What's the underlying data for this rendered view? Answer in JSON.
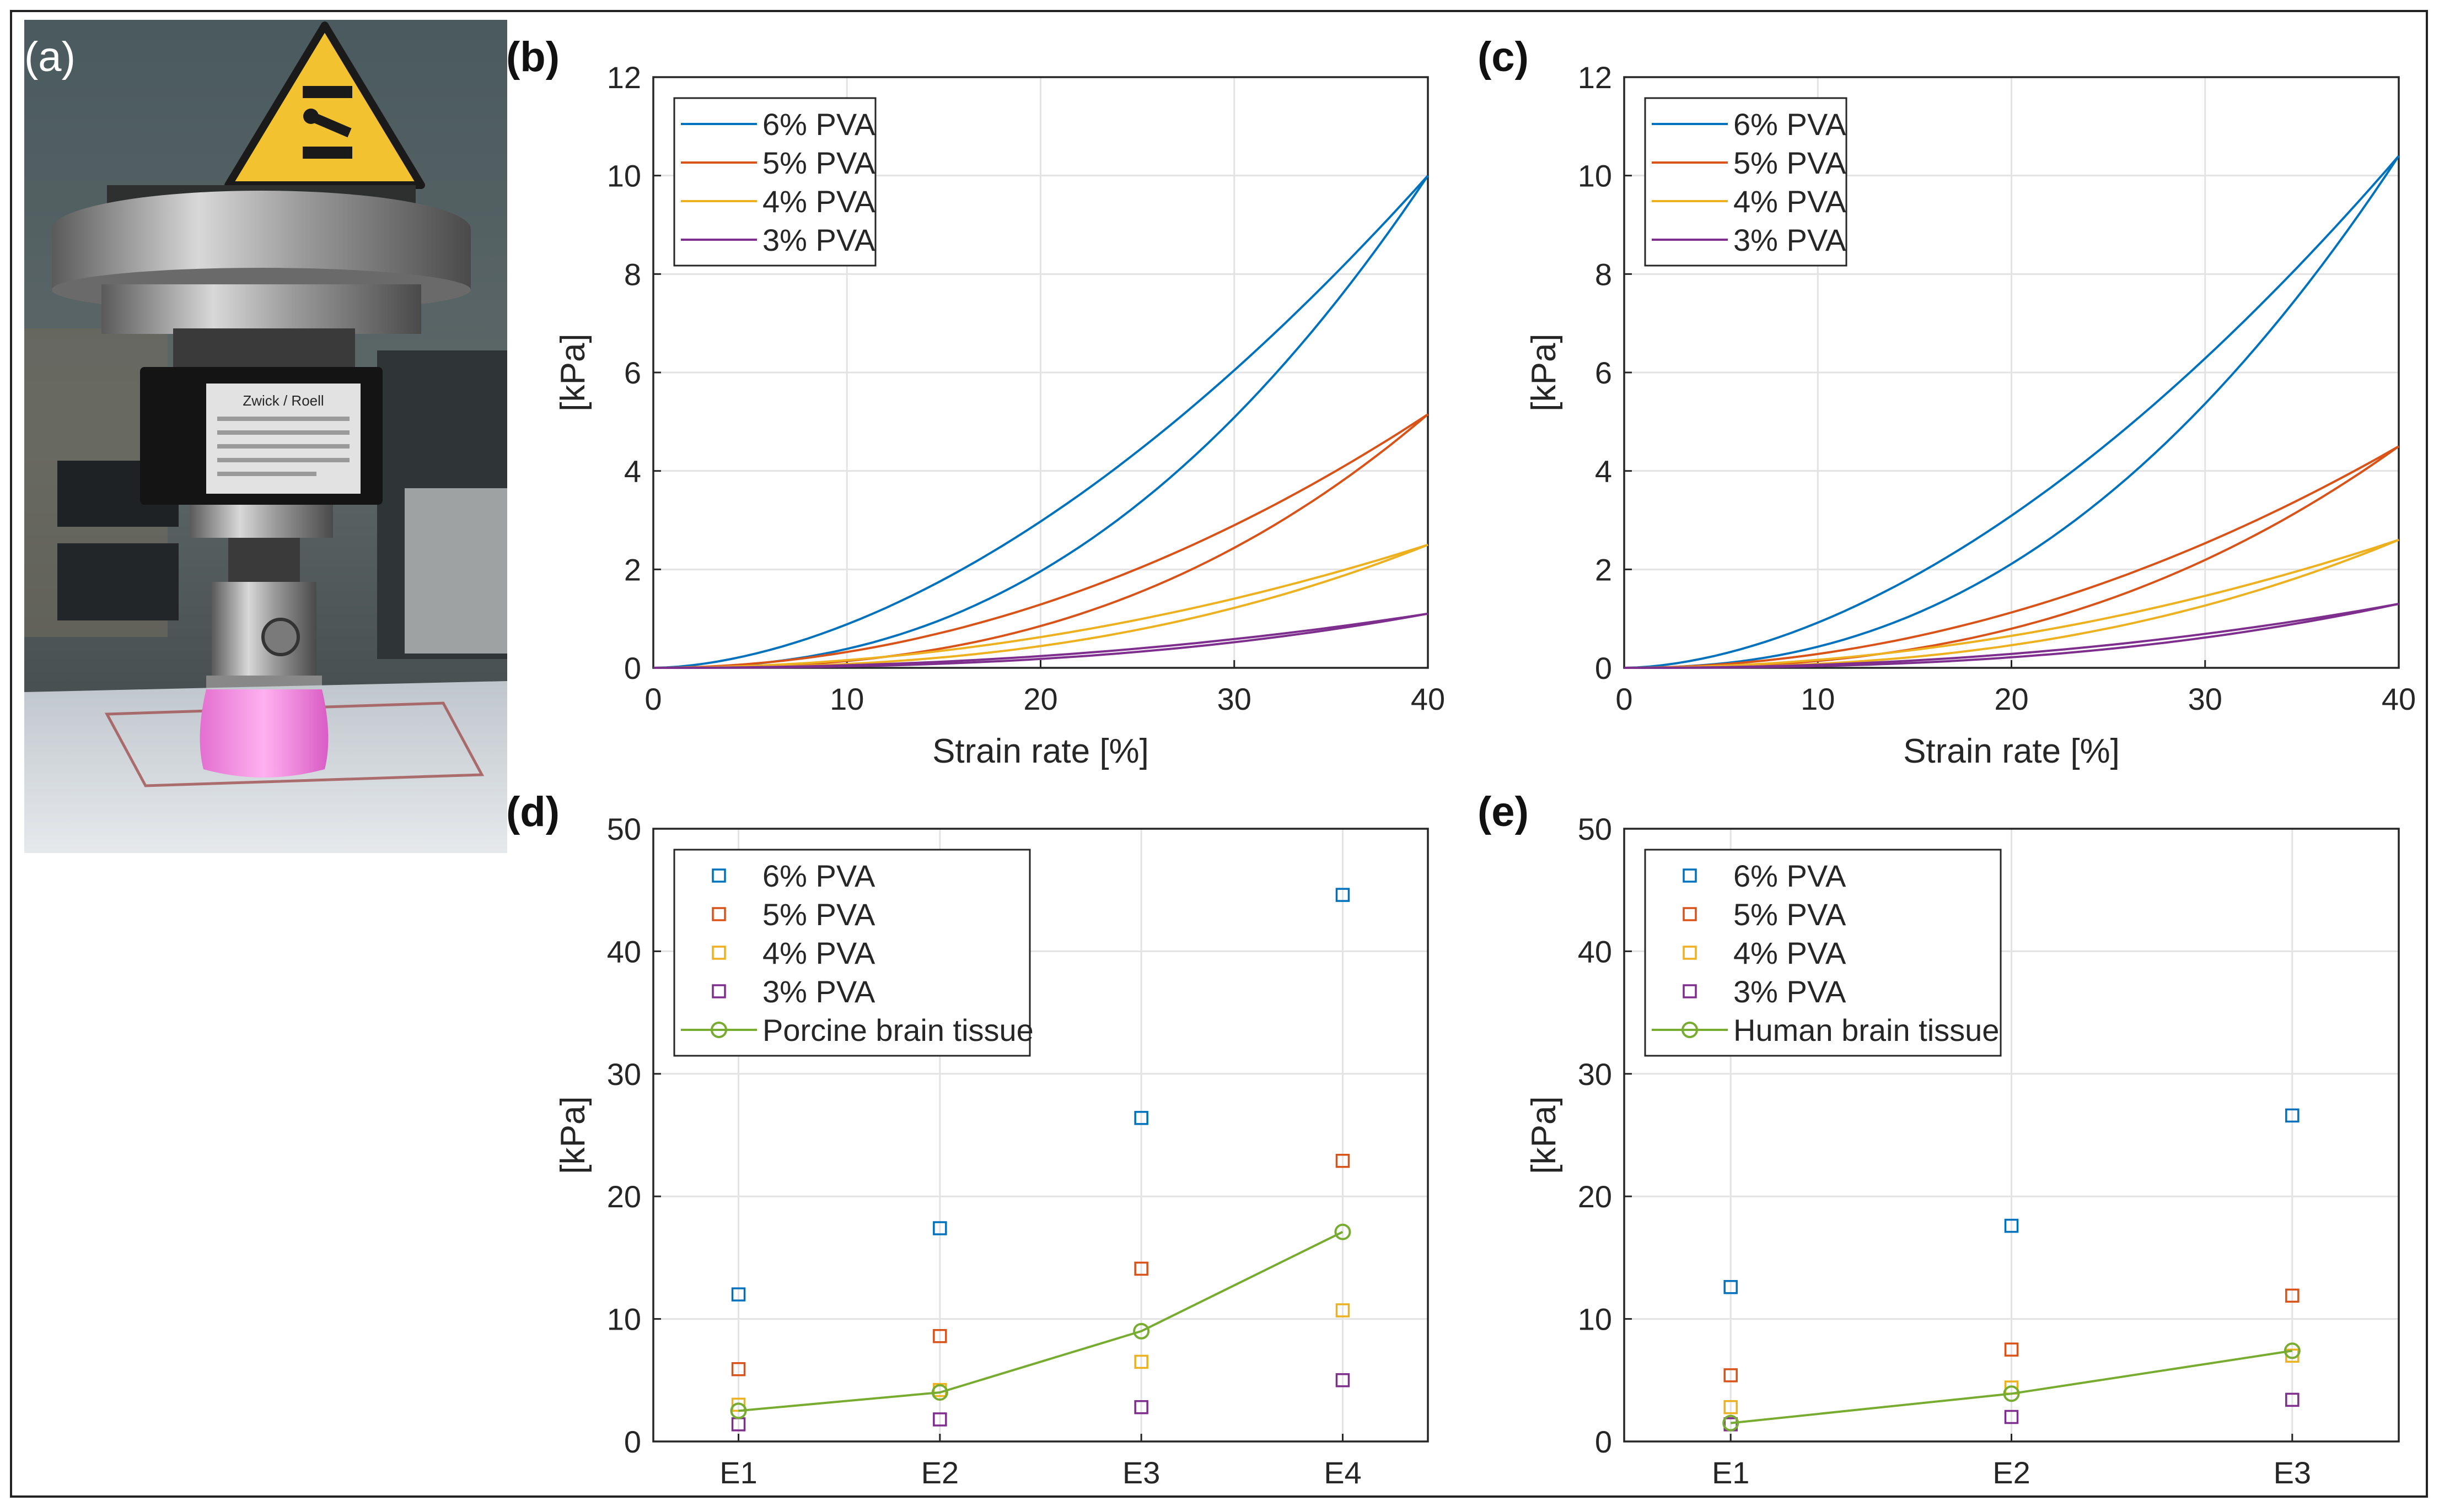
{
  "panels": {
    "a": "(a)",
    "b": "(b)",
    "c": "(c)",
    "d": "(d)",
    "e": "(e)"
  },
  "photo": {
    "load_cell_brand": "Zwick / Roell",
    "warning_sign": "crush-hazard-icon"
  },
  "colors": {
    "pva6": "#0072BD",
    "pva5": "#D95319",
    "pva4": "#EDB120",
    "pva3": "#7E2F8E",
    "tissue": "#77AC30",
    "grid": "#e3e3e3",
    "axis": "#262626"
  },
  "chart_data": [
    {
      "id": "b",
      "type": "line",
      "xlabel": "Strain rate [%]",
      "ylabel": "[kPa]",
      "xlim": [
        0,
        40
      ],
      "ylim": [
        0,
        12
      ],
      "xticks": [
        "0",
        "10",
        "20",
        "30",
        "40"
      ],
      "yticks": [
        "0",
        "2",
        "4",
        "6",
        "8",
        "10",
        "12"
      ],
      "grid": true,
      "legend_position": "top-left",
      "series": [
        {
          "name": "6% PVA",
          "peak": 10.0,
          "loading_exp": 1.75,
          "unloading_exp": 2.35
        },
        {
          "name": "5% PVA",
          "peak": 5.15,
          "loading_exp": 2.0,
          "unloading_exp": 2.6
        },
        {
          "name": "4% PVA",
          "peak": 2.5,
          "loading_exp": 2.0,
          "unloading_exp": 2.5
        },
        {
          "name": "3% PVA",
          "peak": 1.1,
          "loading_exp": 2.2,
          "unloading_exp": 2.6
        }
      ]
    },
    {
      "id": "c",
      "type": "line",
      "xlabel": "Strain rate [%]",
      "ylabel": "[kPa]",
      "xlim": [
        0,
        40
      ],
      "ylim": [
        0,
        12
      ],
      "xticks": [
        "0",
        "10",
        "20",
        "30",
        "40"
      ],
      "yticks": [
        "0",
        "2",
        "4",
        "6",
        "8",
        "10",
        "12"
      ],
      "grid": true,
      "legend_position": "top-left",
      "series": [
        {
          "name": "6% PVA",
          "peak": 10.4,
          "loading_exp": 1.75,
          "unloading_exp": 2.3
        },
        {
          "name": "5% PVA",
          "peak": 4.5,
          "loading_exp": 2.0,
          "unloading_exp": 2.5
        },
        {
          "name": "4% PVA",
          "peak": 2.6,
          "loading_exp": 2.0,
          "unloading_exp": 2.5
        },
        {
          "name": "3% PVA",
          "peak": 1.3,
          "loading_exp": 2.2,
          "unloading_exp": 2.6
        }
      ]
    },
    {
      "id": "d",
      "type": "scatter",
      "ylabel": "[kPa]",
      "categories": [
        "E1",
        "E2",
        "E3",
        "E4"
      ],
      "ylim": [
        0,
        50
      ],
      "yticks": [
        "0",
        "10",
        "20",
        "30",
        "40",
        "50"
      ],
      "grid": true,
      "legend_position": "top-left",
      "series": [
        {
          "name": "6% PVA",
          "marker": "square",
          "values": [
            12.0,
            17.4,
            26.4,
            44.6
          ]
        },
        {
          "name": "5% PVA",
          "marker": "square",
          "values": [
            5.9,
            8.6,
            14.1,
            22.9
          ]
        },
        {
          "name": "4% PVA",
          "marker": "square",
          "values": [
            3.0,
            4.2,
            6.5,
            10.7
          ]
        },
        {
          "name": "3% PVA",
          "marker": "square",
          "values": [
            1.4,
            1.8,
            2.8,
            5.0
          ]
        },
        {
          "name": "Porcine brain tissue",
          "marker": "circle-line",
          "values": [
            2.5,
            4.0,
            9.0,
            17.1
          ]
        }
      ]
    },
    {
      "id": "e",
      "type": "scatter",
      "ylabel": "[kPa]",
      "categories": [
        "E1",
        "E2",
        "E3"
      ],
      "ylim": [
        0,
        50
      ],
      "yticks": [
        "0",
        "10",
        "20",
        "30",
        "40",
        "50"
      ],
      "grid": true,
      "legend_position": "top-left",
      "series": [
        {
          "name": "6% PVA",
          "marker": "square",
          "values": [
            12.6,
            17.6,
            26.6
          ]
        },
        {
          "name": "5% PVA",
          "marker": "square",
          "values": [
            5.4,
            7.5,
            11.9
          ]
        },
        {
          "name": "4% PVA",
          "marker": "square",
          "values": [
            2.8,
            4.4,
            7.0
          ]
        },
        {
          "name": "3% PVA",
          "marker": "square",
          "values": [
            1.4,
            2.0,
            3.4
          ]
        },
        {
          "name": "Human brain tissue",
          "marker": "circle-line",
          "values": [
            1.5,
            3.9,
            7.4
          ]
        }
      ]
    }
  ]
}
